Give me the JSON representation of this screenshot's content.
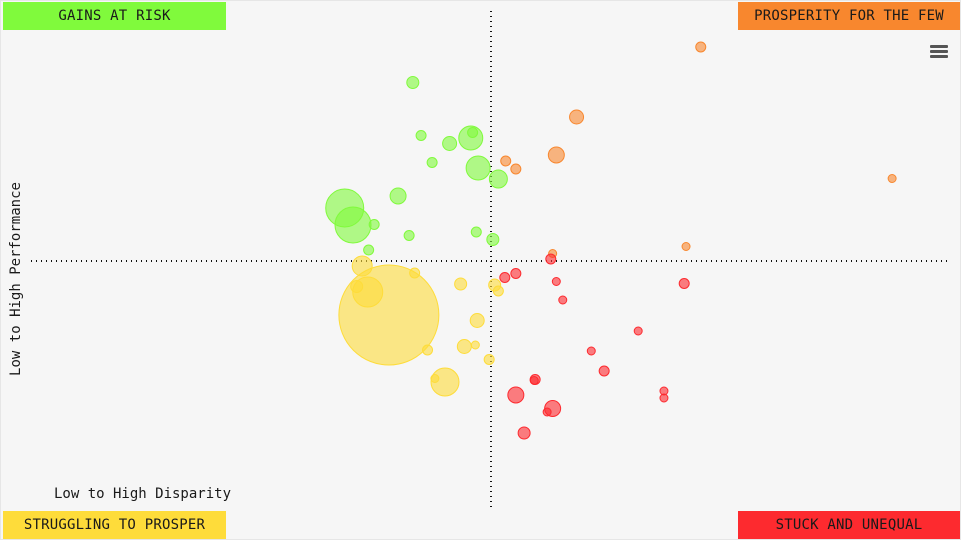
{
  "quadrants": {
    "top_left": {
      "label": "GAINS AT RISK",
      "color": "#80fa3c"
    },
    "top_right": {
      "label": "PROSPERITY FOR THE FEW",
      "color": "#f8872e"
    },
    "bottom_left": {
      "label": "STRUGGLING TO PROSPER",
      "color": "#fedc3a"
    },
    "bottom_right": {
      "label": "STUCK AND UNEQUAL",
      "color": "#fd2a2f"
    }
  },
  "chart_data": {
    "type": "bubble",
    "xlabel": "Low to High Disparity",
    "ylabel": "Low to High Performance",
    "xlim": [
      0,
      100
    ],
    "ylim": [
      0,
      100
    ],
    "grid": false,
    "dividers": {
      "x": 50,
      "y": 50
    },
    "series": [
      {
        "color": "#80fa3c",
        "points": [
          {
            "x": 41.5,
            "y": 85.7,
            "r": 6
          },
          {
            "x": 42.4,
            "y": 75.1,
            "r": 5
          },
          {
            "x": 45.5,
            "y": 73.5,
            "r": 7
          },
          {
            "x": 47.8,
            "y": 74.6,
            "r": 12
          },
          {
            "x": 48.0,
            "y": 75.7,
            "r": 5
          },
          {
            "x": 43.6,
            "y": 69.7,
            "r": 5
          },
          {
            "x": 48.6,
            "y": 68.6,
            "r": 12
          },
          {
            "x": 50.8,
            "y": 66.4,
            "r": 9
          },
          {
            "x": 39.9,
            "y": 63.0,
            "r": 8
          },
          {
            "x": 34.1,
            "y": 60.6,
            "r": 19
          },
          {
            "x": 35.0,
            "y": 57.2,
            "r": 18
          },
          {
            "x": 37.3,
            "y": 57.3,
            "r": 5
          },
          {
            "x": 41.1,
            "y": 55.1,
            "r": 5
          },
          {
            "x": 48.4,
            "y": 55.8,
            "r": 5
          },
          {
            "x": 50.2,
            "y": 54.3,
            "r": 6
          },
          {
            "x": 36.7,
            "y": 52.2,
            "r": 5
          }
        ]
      },
      {
        "color": "#f8872e",
        "points": [
          {
            "x": 72.8,
            "y": 92.8,
            "r": 5
          },
          {
            "x": 59.3,
            "y": 78.8,
            "r": 7
          },
          {
            "x": 57.1,
            "y": 71.2,
            "r": 8
          },
          {
            "x": 51.6,
            "y": 70.0,
            "r": 5
          },
          {
            "x": 52.7,
            "y": 68.4,
            "r": 5
          },
          {
            "x": 93.6,
            "y": 66.5,
            "r": 4
          },
          {
            "x": 71.2,
            "y": 52.9,
            "r": 4
          },
          {
            "x": 56.7,
            "y": 51.5,
            "r": 4
          }
        ]
      },
      {
        "color": "#fedc3a",
        "points": [
          {
            "x": 36.0,
            "y": 49.0,
            "r": 10
          },
          {
            "x": 41.7,
            "y": 47.6,
            "r": 5
          },
          {
            "x": 35.4,
            "y": 44.9,
            "r": 6
          },
          {
            "x": 36.6,
            "y": 43.8,
            "r": 15
          },
          {
            "x": 46.7,
            "y": 45.4,
            "r": 6
          },
          {
            "x": 50.4,
            "y": 45.2,
            "r": 6
          },
          {
            "x": 50.8,
            "y": 44.0,
            "r": 5
          },
          {
            "x": 48.5,
            "y": 38.1,
            "r": 7
          },
          {
            "x": 38.9,
            "y": 39.2,
            "r": 50
          },
          {
            "x": 47.1,
            "y": 32.9,
            "r": 7
          },
          {
            "x": 48.3,
            "y": 33.2,
            "r": 4
          },
          {
            "x": 43.1,
            "y": 32.2,
            "r": 5
          },
          {
            "x": 49.8,
            "y": 30.3,
            "r": 5
          },
          {
            "x": 43.9,
            "y": 26.5,
            "r": 4
          },
          {
            "x": 45.0,
            "y": 25.8,
            "r": 14
          }
        ]
      },
      {
        "color": "#fd2a2f",
        "points": [
          {
            "x": 51.5,
            "y": 46.7,
            "r": 5
          },
          {
            "x": 52.7,
            "y": 47.5,
            "r": 5
          },
          {
            "x": 56.5,
            "y": 50.4,
            "r": 5
          },
          {
            "x": 57.1,
            "y": 45.9,
            "r": 4
          },
          {
            "x": 71.0,
            "y": 45.5,
            "r": 5
          },
          {
            "x": 57.8,
            "y": 42.2,
            "r": 4
          },
          {
            "x": 66.0,
            "y": 36.0,
            "r": 4
          },
          {
            "x": 60.9,
            "y": 32.0,
            "r": 4
          },
          {
            "x": 62.3,
            "y": 28.0,
            "r": 5
          },
          {
            "x": 54.8,
            "y": 26.3,
            "r": 5
          },
          {
            "x": 54.7,
            "y": 26.1,
            "r": 4
          },
          {
            "x": 52.7,
            "y": 23.2,
            "r": 8
          },
          {
            "x": 68.8,
            "y": 24.0,
            "r": 4
          },
          {
            "x": 68.8,
            "y": 22.6,
            "r": 4
          },
          {
            "x": 56.7,
            "y": 20.5,
            "r": 8
          },
          {
            "x": 56.1,
            "y": 19.8,
            "r": 4
          },
          {
            "x": 53.6,
            "y": 15.6,
            "r": 6
          }
        ]
      }
    ]
  }
}
